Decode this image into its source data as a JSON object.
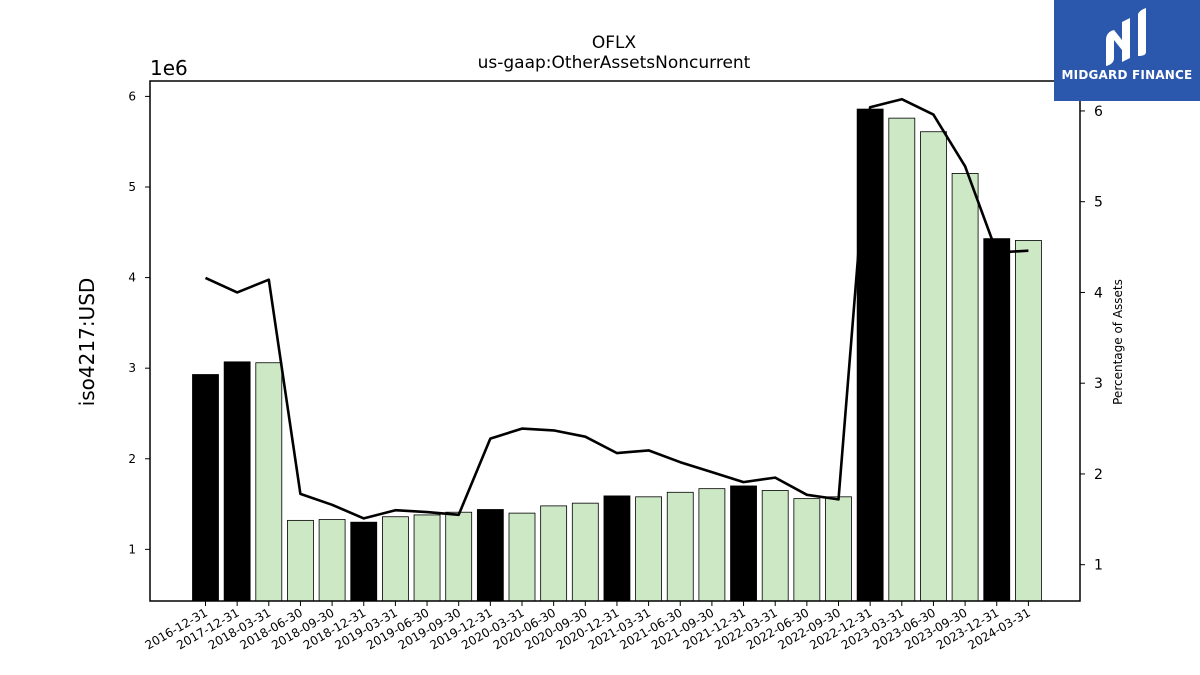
{
  "chart_data": {
    "type": "bar",
    "title": "OFLX",
    "subtitle": "us-gaap:OtherAssetsNoncurrent",
    "ylabel": "iso4217:USD",
    "y2label": "Percentage of Assets",
    "y_multiplier_label": "1e6",
    "ylim": [
      430000,
      6170000
    ],
    "y2lim": [
      0.6,
      6.33
    ],
    "yticks": [
      "1",
      "2",
      "3",
      "4",
      "5",
      "6"
    ],
    "y2ticks": [
      "1",
      "2",
      "3",
      "4",
      "5",
      "6"
    ],
    "categories": [
      "2016-12-31",
      "2017-12-31",
      "2018-03-31",
      "2018-06-30",
      "2018-09-30",
      "2018-12-31",
      "2019-03-31",
      "2019-06-30",
      "2019-09-30",
      "2019-12-31",
      "2020-03-31",
      "2020-06-30",
      "2020-09-30",
      "2020-12-31",
      "2021-03-31",
      "2021-06-30",
      "2021-09-30",
      "2021-12-31",
      "2022-03-31",
      "2022-06-30",
      "2022-09-30",
      "2022-12-31",
      "2023-03-31",
      "2023-06-30",
      "2023-09-30",
      "2023-12-31",
      "2024-03-31"
    ],
    "series": [
      {
        "kind": "bar",
        "values": [
          2930000,
          3070000,
          3060000,
          1320000,
          1330000,
          1300000,
          1360000,
          1380000,
          1410000,
          1440000,
          1400000,
          1480000,
          1510000,
          1590000,
          1580000,
          1630000,
          1670000,
          1700000,
          1650000,
          1560000,
          1580000,
          5860000,
          5760000,
          5610000,
          5150000,
          4430000,
          4410000
        ],
        "fiscal_year_end": [
          true,
          true,
          false,
          false,
          false,
          true,
          false,
          false,
          false,
          true,
          false,
          false,
          false,
          true,
          false,
          false,
          false,
          true,
          false,
          false,
          false,
          true,
          false,
          false,
          false,
          true,
          false
        ]
      },
      {
        "kind": "line",
        "axis": "right",
        "values": [
          4.16,
          4.0,
          4.14,
          1.78,
          1.66,
          1.51,
          1.6,
          1.58,
          1.55,
          2.39,
          2.5,
          2.48,
          2.41,
          2.23,
          2.26,
          2.13,
          2.02,
          1.91,
          1.96,
          1.77,
          1.72,
          6.04,
          6.13,
          5.96,
          5.39,
          4.44,
          4.46
        ]
      }
    ],
    "colors": {
      "fiscal_year_end": "#000000",
      "quarter": "#cce8c5",
      "line": "#000000"
    },
    "grid": false,
    "legend": "none"
  },
  "logo": {
    "text": "MIDGARD FINANCE"
  }
}
